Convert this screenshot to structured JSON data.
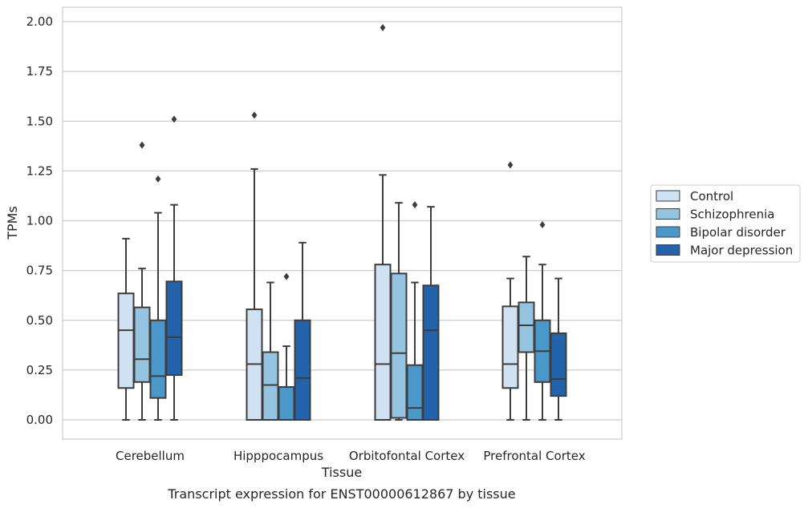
{
  "chart_data": {
    "type": "box",
    "title": "",
    "caption": "Transcript expression for ENST00000612867 by tissue",
    "xlabel": "Tissue",
    "ylabel": "TPMs",
    "ylim": [
      -0.1,
      2.07
    ],
    "yticks": [
      0.0,
      0.25,
      0.5,
      0.75,
      1.0,
      1.25,
      1.5,
      1.75,
      2.0
    ],
    "ytick_labels": [
      "0.00",
      "0.25",
      "0.50",
      "0.75",
      "1.00",
      "1.25",
      "1.50",
      "1.75",
      "2.00"
    ],
    "grid": true,
    "legend_position": "right",
    "categories": [
      "Cerebellum",
      "Hipppocampus",
      "Orbitofontal Cortex",
      "Prefrontal Cortex"
    ],
    "series": [
      {
        "name": "Control",
        "color": "#d0e1f2",
        "boxes": [
          {
            "min": 0.0,
            "q1": 0.16,
            "median": 0.45,
            "q3": 0.635,
            "max": 0.91,
            "outliers": []
          },
          {
            "min": 0.0,
            "q1": 0.0,
            "median": 0.28,
            "q3": 0.555,
            "max": 1.26,
            "outliers": [
              1.53
            ]
          },
          {
            "min": 0.0,
            "q1": 0.0,
            "median": 0.28,
            "q3": 0.78,
            "max": 1.23,
            "outliers": [
              1.97
            ]
          },
          {
            "min": 0.0,
            "q1": 0.16,
            "median": 0.28,
            "q3": 0.57,
            "max": 0.71,
            "outliers": [
              1.28
            ]
          }
        ]
      },
      {
        "name": "Schizophrenia",
        "color": "#94c4df",
        "boxes": [
          {
            "min": 0.0,
            "q1": 0.19,
            "median": 0.305,
            "q3": 0.565,
            "max": 0.76,
            "outliers": [
              1.38
            ]
          },
          {
            "min": 0.0,
            "q1": 0.0,
            "median": 0.175,
            "q3": 0.34,
            "max": 0.69,
            "outliers": []
          },
          {
            "min": 0.0,
            "q1": 0.01,
            "median": 0.335,
            "q3": 0.735,
            "max": 1.09,
            "outliers": []
          },
          {
            "min": 0.0,
            "q1": 0.34,
            "median": 0.475,
            "q3": 0.59,
            "max": 0.82,
            "outliers": []
          }
        ]
      },
      {
        "name": "Bipolar disorder",
        "color": "#4a98c9",
        "boxes": [
          {
            "min": 0.0,
            "q1": 0.11,
            "median": 0.22,
            "q3": 0.5,
            "max": 1.04,
            "outliers": [
              1.21
            ]
          },
          {
            "min": 0.0,
            "q1": 0.0,
            "median": 0.0,
            "q3": 0.165,
            "max": 0.37,
            "outliers": [
              0.72
            ]
          },
          {
            "min": 0.0,
            "q1": 0.0,
            "median": 0.06,
            "q3": 0.275,
            "max": 0.69,
            "outliers": [
              1.08
            ]
          },
          {
            "min": 0.0,
            "q1": 0.19,
            "median": 0.345,
            "q3": 0.5,
            "max": 0.78,
            "outliers": [
              0.98
            ]
          }
        ]
      },
      {
        "name": "Major depression",
        "color": "#2164ab",
        "boxes": [
          {
            "min": 0.0,
            "q1": 0.225,
            "median": 0.415,
            "q3": 0.695,
            "max": 1.08,
            "outliers": [
              1.51
            ]
          },
          {
            "min": 0.0,
            "q1": 0.0,
            "median": 0.21,
            "q3": 0.5,
            "max": 0.89,
            "outliers": []
          },
          {
            "min": 0.0,
            "q1": 0.0,
            "median": 0.45,
            "q3": 0.675,
            "max": 1.07,
            "outliers": []
          },
          {
            "min": 0.0,
            "q1": 0.12,
            "median": 0.205,
            "q3": 0.435,
            "max": 0.71,
            "outliers": []
          }
        ]
      }
    ]
  }
}
